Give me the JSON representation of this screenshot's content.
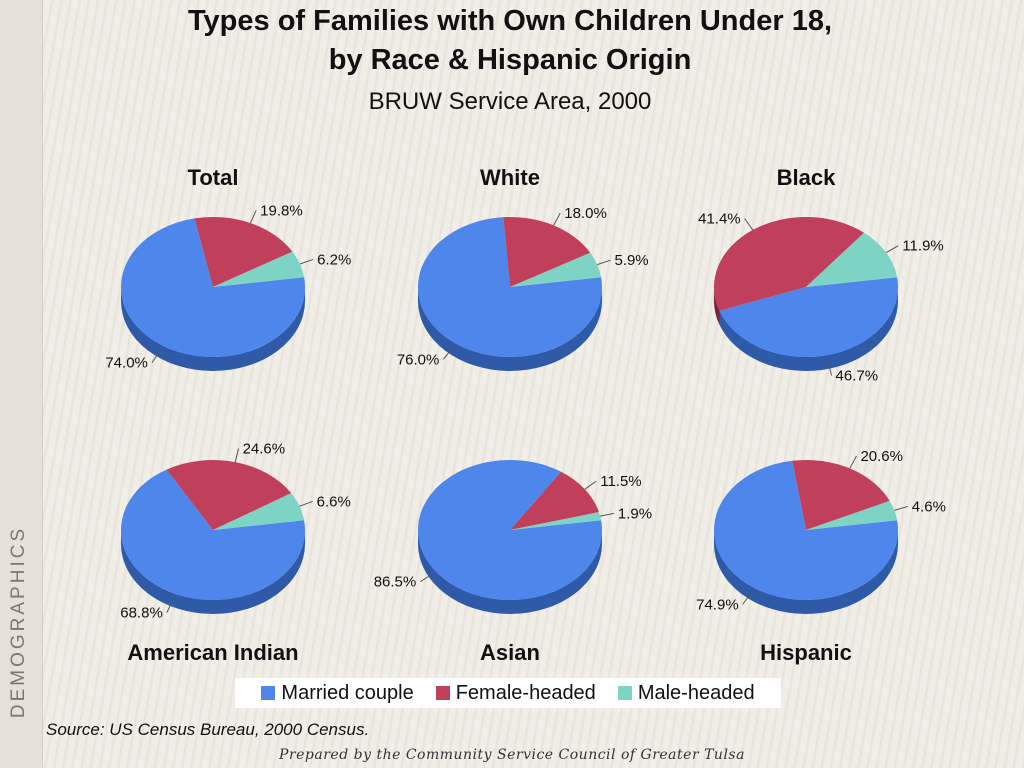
{
  "title_line1": "Types of Families with Own Children Under 18,",
  "title_line2": "by Race & Hispanic Origin",
  "subtitle": "BRUW Service Area, 2000",
  "sidebar_label": "DEMOGRAPHICS",
  "source": "Source:  US Census Bureau, 2000 Census.",
  "footer": "Prepared by the Community Service Council of Greater Tulsa",
  "chart_data": {
    "type": "pie",
    "series_names": [
      "Married couple",
      "Female-headed",
      "Male-headed"
    ],
    "colors": [
      "#4f86ec",
      "#c0405c",
      "#7dd3c4"
    ],
    "pies": [
      {
        "name": "Total",
        "values": [
          74.0,
          19.8,
          6.2
        ],
        "labels": [
          "74.0%",
          "19.8%",
          "6.2%"
        ]
      },
      {
        "name": "White",
        "values": [
          76.0,
          18.0,
          5.9
        ],
        "labels": [
          "76.0%",
          "18.0%",
          "5.9%"
        ]
      },
      {
        "name": "Black",
        "values": [
          46.7,
          41.4,
          11.9
        ],
        "labels": [
          "46.7%",
          "41.4%",
          "11.9%"
        ]
      },
      {
        "name": "American Indian",
        "values": [
          68.8,
          24.6,
          6.6
        ],
        "labels": [
          "68.8%",
          "24.6%",
          "6.6%"
        ]
      },
      {
        "name": "Asian",
        "values": [
          86.5,
          11.5,
          1.9
        ],
        "labels": [
          "86.5%",
          "11.5%",
          "1.9%"
        ]
      },
      {
        "name": "Hispanic",
        "values": [
          74.9,
          20.6,
          4.6
        ],
        "labels": [
          "74.9%",
          "20.6%",
          "4.6%"
        ]
      }
    ]
  }
}
